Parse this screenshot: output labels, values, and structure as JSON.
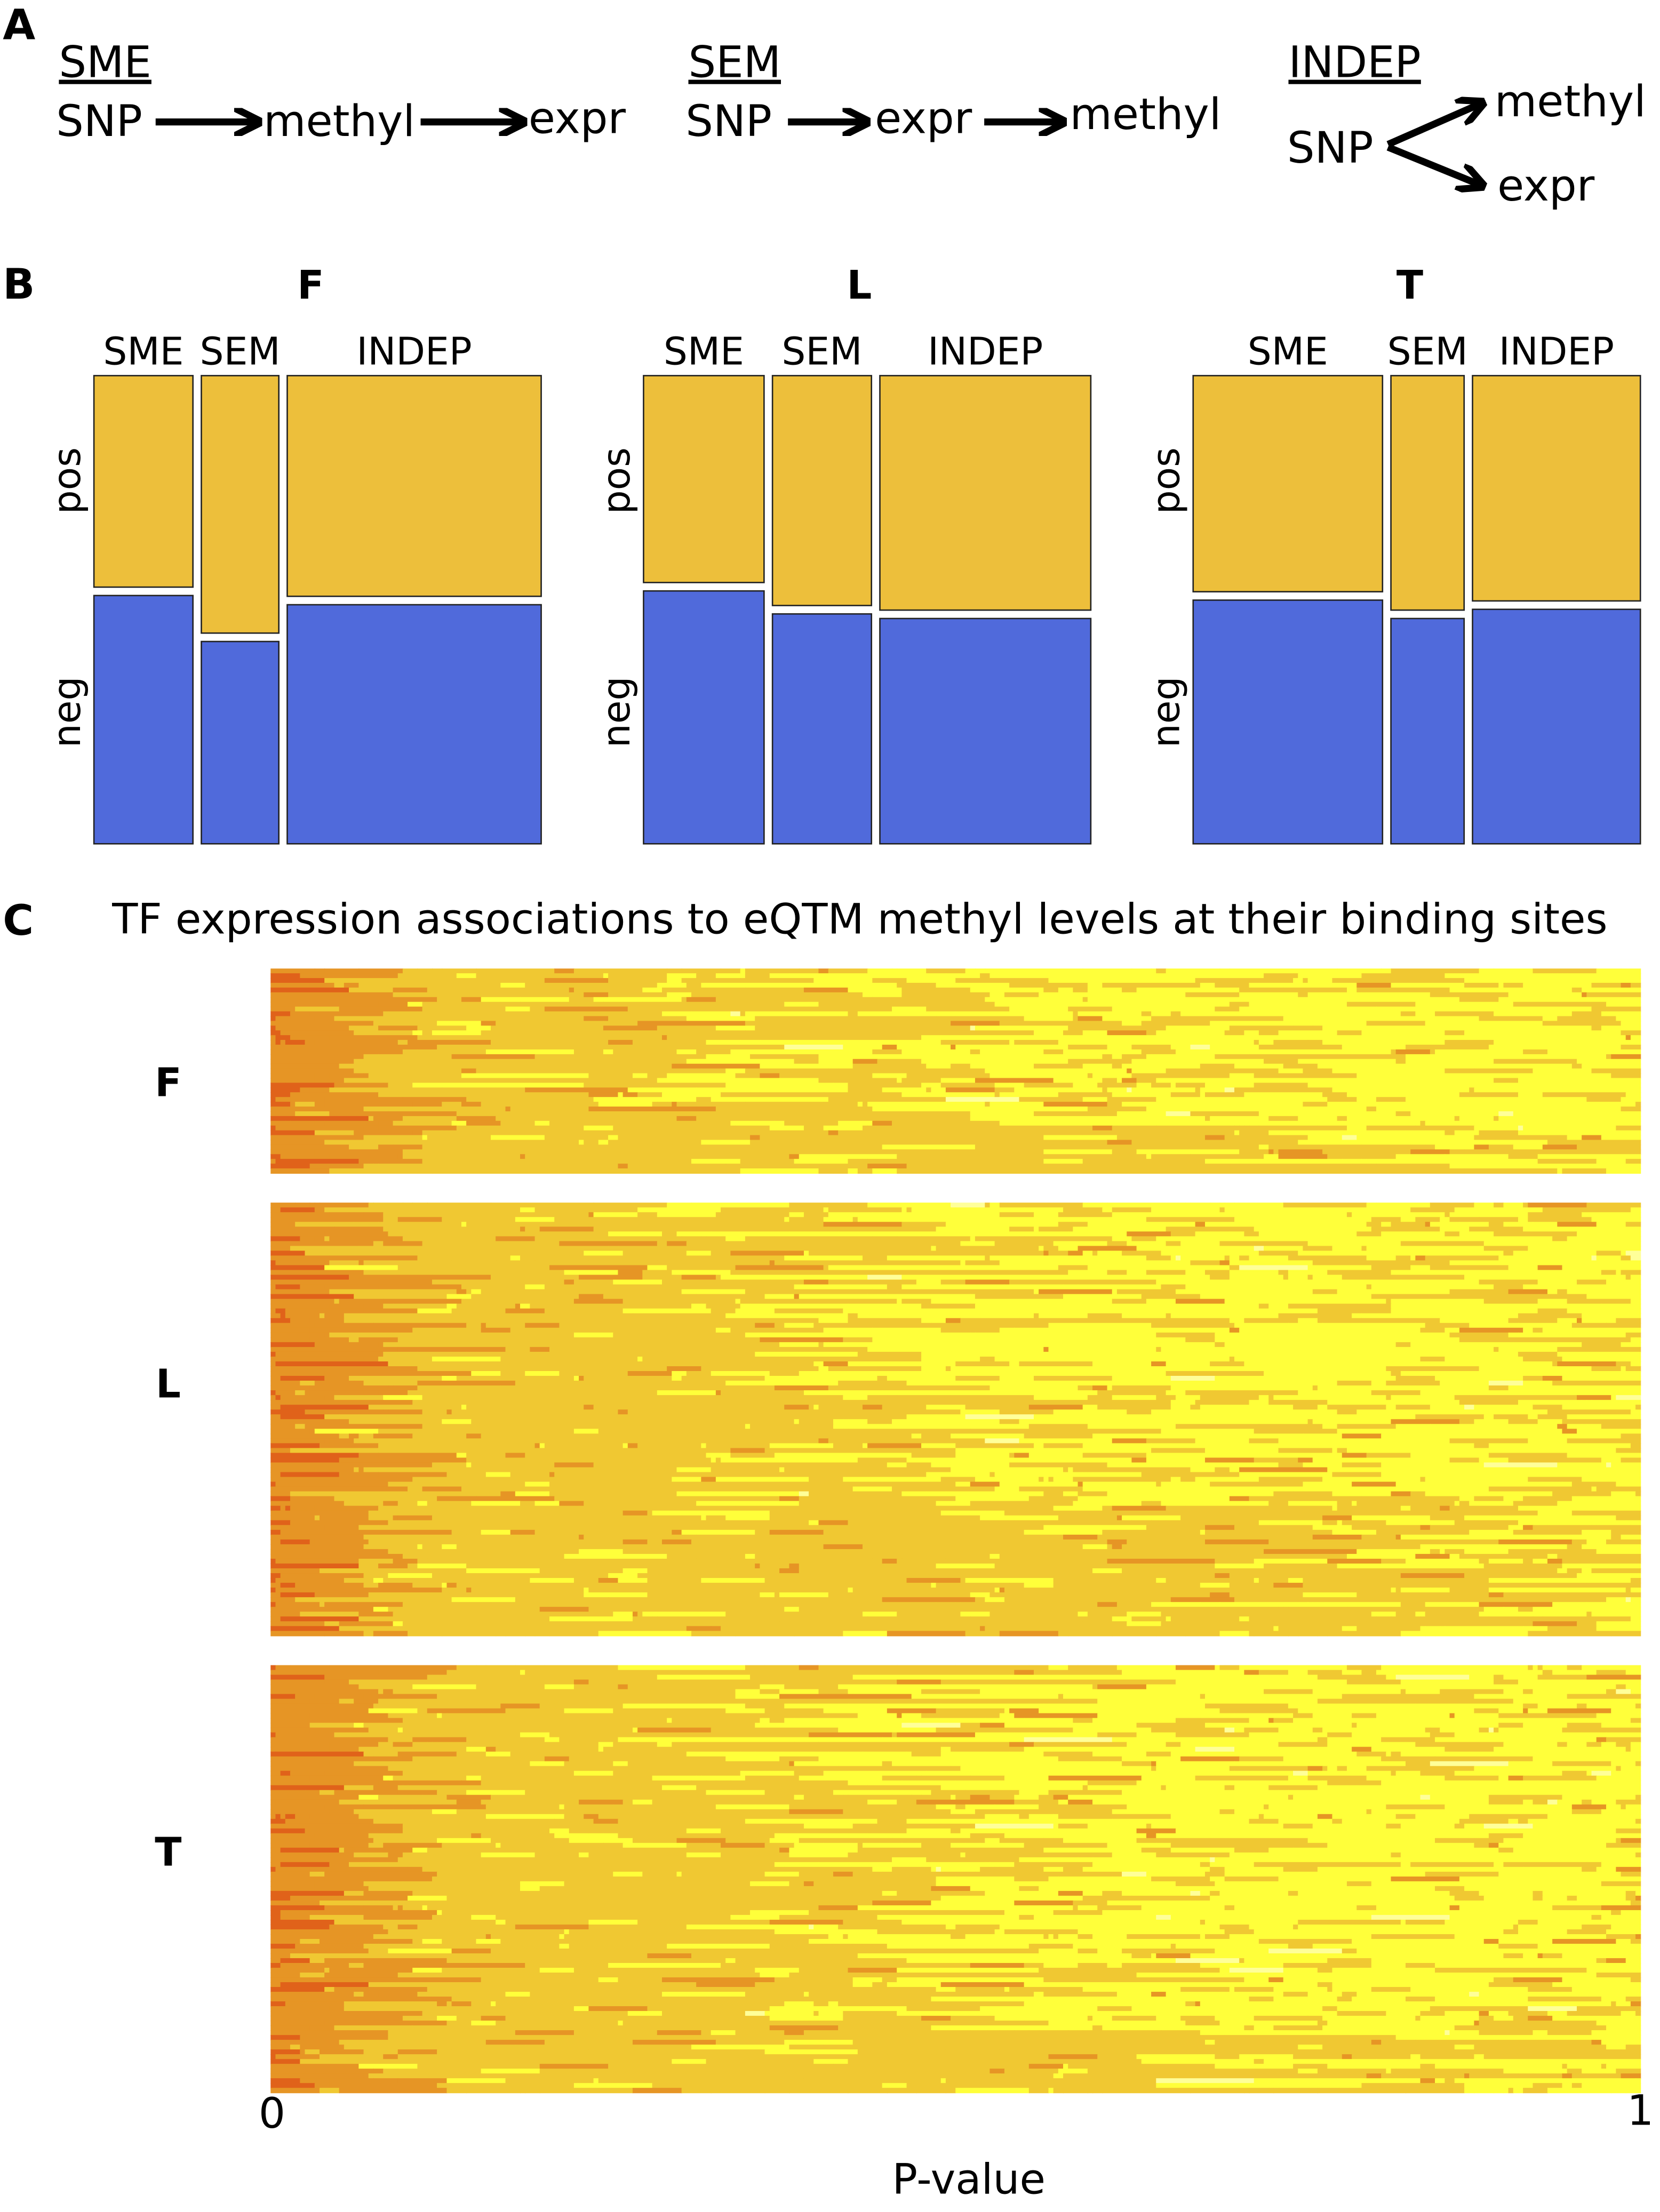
{
  "panel_a": {
    "letter": "A",
    "models": [
      {
        "title": "SME",
        "snp": "SNP",
        "mid": "methyl",
        "end": "expr"
      },
      {
        "title": "SEM",
        "snp": "SNP",
        "mid": "expr",
        "end": "methyl"
      },
      {
        "title": "INDEP",
        "snp": "SNP",
        "top": "methyl",
        "bottom": "expr"
      }
    ]
  },
  "panel_b": {
    "letter": "B"
  },
  "panel_c": {
    "letter": "C",
    "title": "TF expression associations to  eQTM methyl levels at their binding sites"
  },
  "chart_data": [
    {
      "type": "mosaic",
      "colors": {
        "pos": "#EDBF3B",
        "neg": "#506ADB"
      },
      "row_labels": [
        "pos",
        "neg"
      ],
      "panels": [
        {
          "title": "F",
          "categories": [
            "SME",
            "SEM",
            "INDEP"
          ],
          "column_share": [
            0.23,
            0.18,
            0.59
          ],
          "pos_fraction": [
            0.46,
            0.56,
            0.48
          ]
        },
        {
          "title": "L",
          "categories": [
            "SME",
            "SEM",
            "INDEP"
          ],
          "column_share": [
            0.28,
            0.23,
            0.49
          ],
          "pos_fraction": [
            0.45,
            0.5,
            0.51
          ]
        },
        {
          "title": "T",
          "categories": [
            "SME",
            "SEM",
            "INDEP"
          ],
          "column_share": [
            0.44,
            0.17,
            0.39
          ],
          "pos_fraction": [
            0.47,
            0.51,
            0.49
          ]
        }
      ]
    },
    {
      "type": "heatmap",
      "xlabel": "P-value",
      "xlim": [
        0,
        1
      ],
      "xticks": [
        "0",
        "1"
      ],
      "color_levels": [
        "#E0621A",
        "#E69525",
        "#F0C832",
        "#FFFF3A",
        "#FFFF99"
      ],
      "panels": [
        {
          "title": "F",
          "rows": 43,
          "cols": 280,
          "seed": 11,
          "late_gold_fraction": 0.25
        },
        {
          "title": "L",
          "rows": 90,
          "cols": 280,
          "seed": 23,
          "late_gold_fraction": 0.3
        },
        {
          "title": "T",
          "rows": 89,
          "cols": 280,
          "seed": 37,
          "late_gold_fraction": 0.15
        }
      ]
    }
  ]
}
